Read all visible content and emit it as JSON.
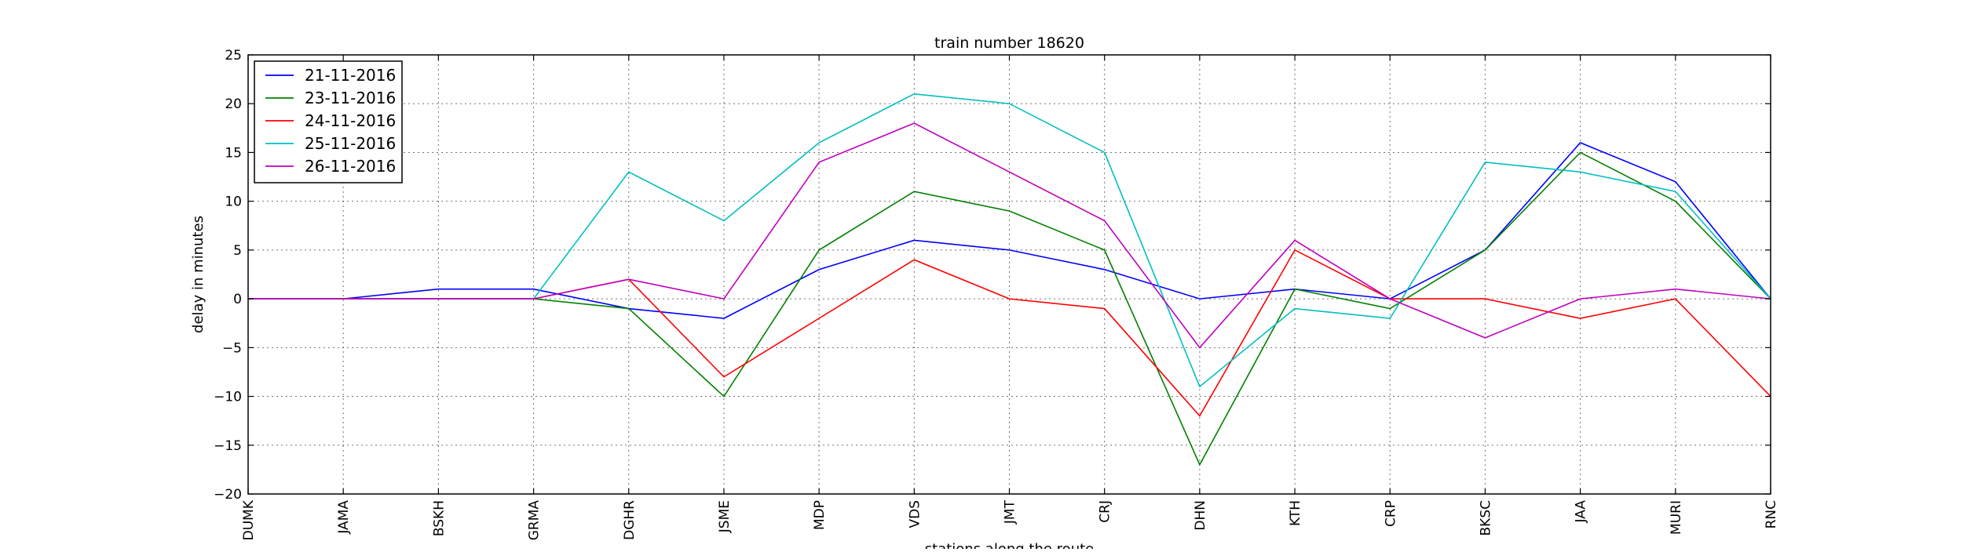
{
  "chart_data": {
    "type": "line",
    "title": "train number 18620",
    "xlabel": "stations along the route",
    "ylabel": "delay in minutes",
    "categories": [
      "DUMK",
      "JAMA",
      "BSKH",
      "GRMA",
      "DGHR",
      "JSME",
      "MDP",
      "VDS",
      "JMT",
      "CRJ",
      "DHN",
      "KTH",
      "CRP",
      "BKSC",
      "JAA",
      "MURI",
      "RNC"
    ],
    "ylim": [
      -20,
      25
    ],
    "yticks": [
      -20,
      -15,
      -10,
      -5,
      0,
      5,
      10,
      15,
      20,
      25
    ],
    "grid": true,
    "legend_position": "top-left",
    "series": [
      {
        "name": "21-11-2016",
        "color": "#0000ff",
        "values": [
          0,
          0,
          1,
          1,
          -1,
          -2,
          3,
          6,
          5,
          3,
          0,
          1,
          0,
          5,
          16,
          12,
          0
        ]
      },
      {
        "name": "23-11-2016",
        "color": "#008000",
        "values": [
          0,
          0,
          0,
          0,
          -1,
          -10,
          5,
          11,
          9,
          5,
          -17,
          1,
          -1,
          5,
          15,
          10,
          0
        ]
      },
      {
        "name": "24-11-2016",
        "color": "#ff0000",
        "values": [
          0,
          0,
          0,
          0,
          2,
          -8,
          -2,
          4,
          0,
          -1,
          -12,
          5,
          0,
          0,
          -2,
          0,
          -10
        ]
      },
      {
        "name": "25-11-2016",
        "color": "#00bfbf",
        "values": [
          0,
          0,
          0,
          0,
          13,
          8,
          16,
          21,
          20,
          15,
          -9,
          -1,
          -2,
          14,
          13,
          11,
          0
        ]
      },
      {
        "name": "26-11-2016",
        "color": "#bf00bf",
        "values": [
          0,
          0,
          0,
          0,
          2,
          0,
          14,
          18,
          13,
          8,
          -5,
          6,
          0,
          -4,
          0,
          1,
          0
        ]
      }
    ]
  }
}
